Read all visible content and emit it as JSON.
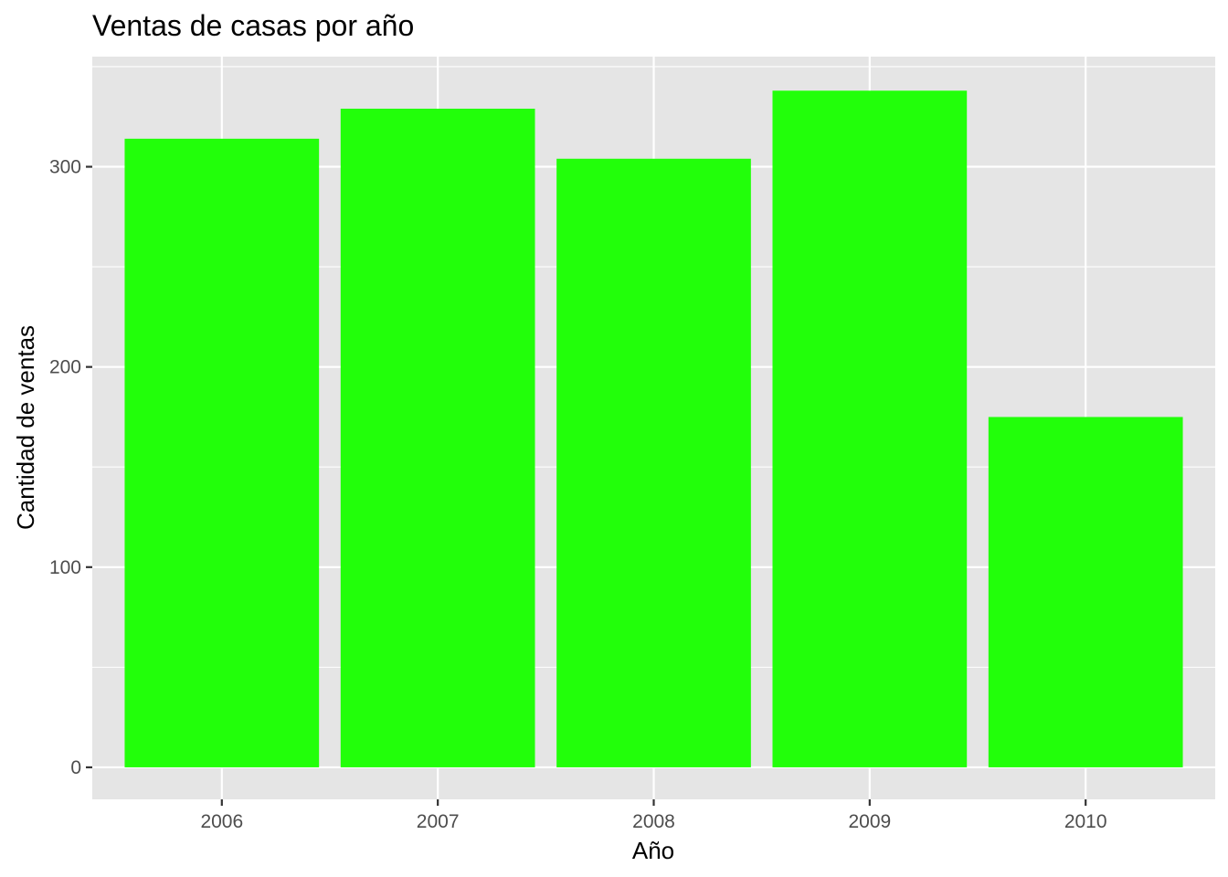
{
  "chart_data": {
    "type": "bar",
    "title": "Ventas de casas por año",
    "xlabel": "Año",
    "ylabel": "Cantidad de ventas",
    "categories": [
      "2006",
      "2007",
      "2008",
      "2009",
      "2010"
    ],
    "values": [
      314,
      329,
      304,
      338,
      175
    ],
    "ylim": [
      -16,
      355
    ],
    "yticks": [
      0,
      100,
      200,
      300
    ],
    "grid": true,
    "legend": "none",
    "colors": {
      "bar": "#22ff0a",
      "panel_background": "#e5e5e5",
      "grid": "#ffffff",
      "tick": "#333333"
    }
  }
}
